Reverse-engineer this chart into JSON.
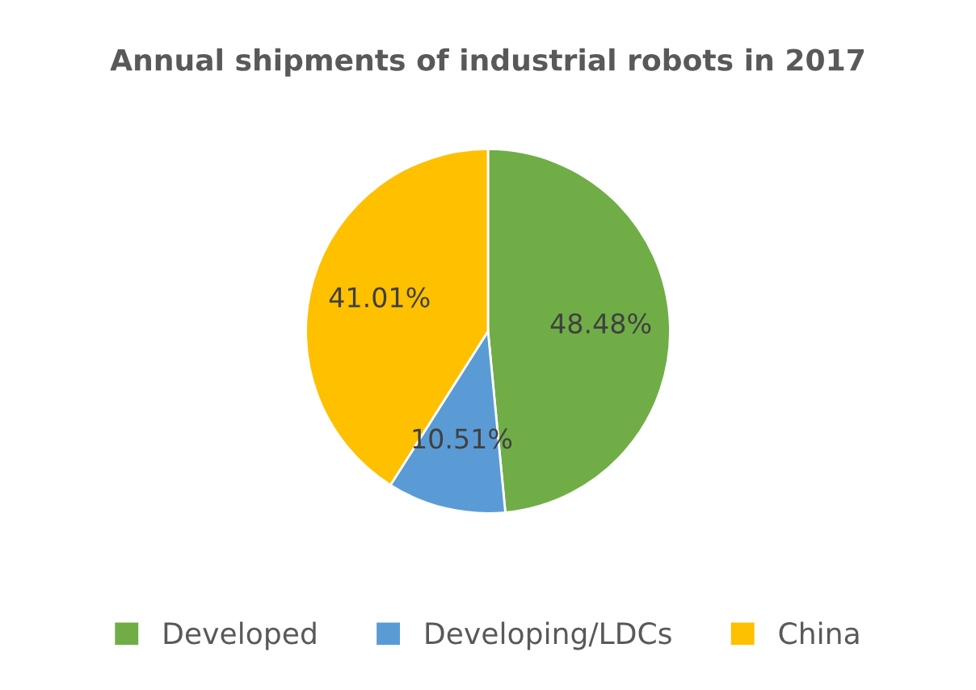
{
  "chart_data": {
    "type": "pie",
    "title": "Annual shipments of industrial robots in 2017",
    "categories": [
      "Developed",
      "Developing/LDCs",
      "China"
    ],
    "values": [
      48.48,
      10.51,
      41.01
    ],
    "colors": [
      "#70ad47",
      "#5b9bd5",
      "#ffc000"
    ],
    "value_labels": [
      "48.48%",
      "10.51%",
      "41.01%"
    ],
    "legend": "bottom"
  }
}
